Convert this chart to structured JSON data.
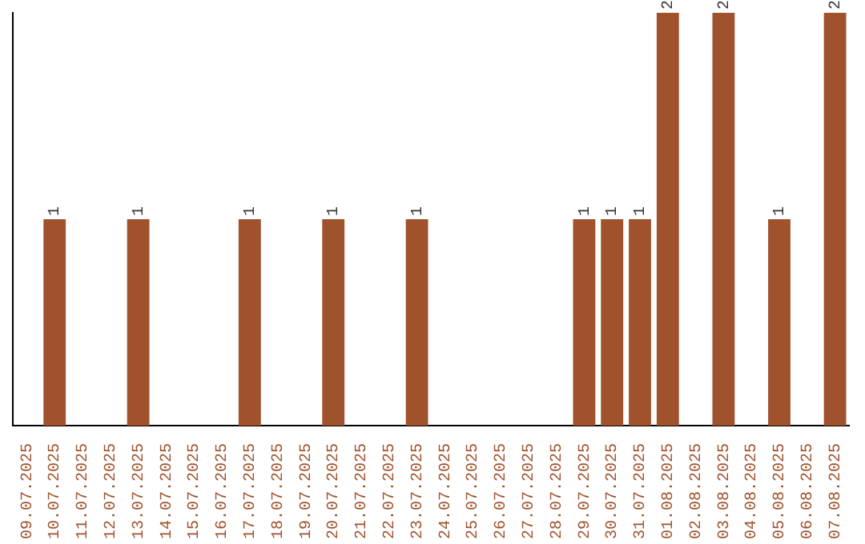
{
  "chart_data": {
    "type": "bar",
    "color": "#a0522d",
    "ylim": [
      0,
      2
    ],
    "categories": [
      "09.07.2025",
      "10.07.2025",
      "11.07.2025",
      "12.07.2025",
      "13.07.2025",
      "14.07.2025",
      "15.07.2025",
      "16.07.2025",
      "17.07.2025",
      "18.07.2025",
      "19.07.2025",
      "20.07.2025",
      "21.07.2025",
      "22.07.2025",
      "23.07.2025",
      "24.07.2025",
      "25.07.2025",
      "26.07.2025",
      "27.07.2025",
      "28.07.2025",
      "29.07.2025",
      "30.07.2025",
      "31.07.2025",
      "01.08.2025",
      "02.08.2025",
      "03.08.2025",
      "04.08.2025",
      "05.08.2025",
      "06.08.2025",
      "07.08.2025"
    ],
    "values": [
      0,
      1,
      0,
      0,
      1,
      0,
      0,
      0,
      1,
      0,
      0,
      1,
      0,
      0,
      1,
      0,
      0,
      0,
      0,
      0,
      1,
      1,
      1,
      2,
      0,
      2,
      0,
      1,
      0,
      2
    ],
    "value_labels": [
      null,
      "1",
      null,
      null,
      "1",
      null,
      null,
      null,
      "1",
      null,
      null,
      "1",
      null,
      null,
      "1",
      null,
      null,
      null,
      null,
      null,
      "1",
      "1",
      "1",
      "2",
      null,
      "2",
      null,
      "1",
      null,
      "2"
    ],
    "grid": false,
    "legend": false
  }
}
